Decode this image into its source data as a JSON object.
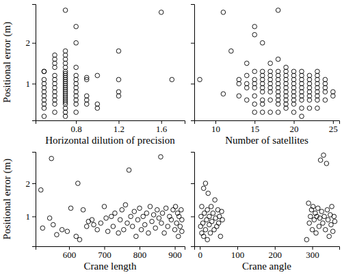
{
  "chart_data": [
    {
      "type": "scatter",
      "x_label": "Horizontal dilution of precision",
      "y_label": "Positional error (m)",
      "marker": "circle",
      "color": "#000000",
      "xlim": [
        0.42,
        1.82
      ],
      "xticks": [
        0.8,
        1.2,
        1.6
      ],
      "ylim": [
        0.1,
        2.95
      ],
      "yticks": [
        1,
        2
      ],
      "x": [
        0.5,
        0.5,
        0.5,
        0.5,
        0.5,
        0.5,
        0.5,
        0.5,
        0.5,
        0.5,
        0.5,
        0.6,
        0.6,
        0.6,
        0.6,
        0.6,
        0.6,
        0.6,
        0.6,
        0.6,
        0.6,
        0.6,
        0.6,
        0.6,
        0.7,
        0.7,
        0.7,
        0.7,
        0.7,
        0.7,
        0.7,
        0.7,
        0.7,
        0.7,
        0.7,
        0.7,
        0.7,
        0.7,
        0.7,
        0.7,
        0.7,
        0.7,
        0.7,
        0.7,
        0.7,
        0.7,
        0.7,
        0.7,
        0.7,
        0.7,
        0.8,
        0.8,
        0.8,
        0.8,
        0.8,
        0.8,
        0.8,
        0.8,
        0.8,
        0.8,
        0.8,
        0.8,
        0.9,
        0.9,
        0.9,
        0.9,
        0.9,
        1.0,
        1.0,
        1.0,
        1.2,
        1.2,
        1.2,
        1.2,
        1.6,
        1.7
      ],
      "values": [
        0.2,
        0.4,
        0.5,
        0.6,
        0.7,
        0.8,
        0.9,
        1.0,
        1.1,
        1.3,
        1.3,
        0.3,
        0.5,
        0.6,
        0.7,
        0.8,
        0.9,
        1.0,
        1.1,
        1.2,
        1.4,
        1.5,
        1.6,
        1.7,
        0.2,
        0.3,
        0.4,
        0.5,
        0.55,
        0.6,
        0.65,
        0.7,
        0.75,
        0.8,
        0.85,
        0.9,
        0.95,
        1.0,
        1.05,
        1.1,
        1.15,
        1.2,
        1.25,
        1.3,
        1.4,
        1.5,
        1.6,
        1.7,
        1.8,
        2.8,
        0.3,
        0.5,
        0.6,
        0.7,
        0.8,
        0.9,
        1.0,
        1.1,
        1.2,
        1.4,
        2.0,
        2.4,
        0.5,
        0.6,
        0.7,
        1.1,
        1.15,
        0.4,
        0.5,
        1.2,
        0.7,
        0.8,
        1.1,
        1.8,
        2.75,
        1.1
      ]
    },
    {
      "type": "scatter",
      "x_label": "Number of satellites",
      "tick_labels": "x",
      "marker": "circle",
      "color": "#000000",
      "xlim": [
        7.3,
        25.8
      ],
      "xticks": [
        10,
        15,
        20,
        25
      ],
      "ylim": [
        0.1,
        2.95
      ],
      "yticks": [
        1,
        2
      ],
      "x": [
        8,
        11,
        11,
        12,
        13,
        13,
        13,
        14,
        14,
        14,
        14,
        14,
        15,
        15,
        15,
        15,
        15,
        15,
        15,
        15,
        15,
        16,
        16,
        16,
        16,
        16,
        16,
        16,
        16,
        16,
        16,
        17,
        17,
        17,
        17,
        17,
        17,
        17,
        17,
        17,
        18,
        18,
        18,
        18,
        18,
        18,
        18,
        18,
        18,
        18,
        18,
        18,
        19,
        19,
        19,
        19,
        19,
        19,
        19,
        19,
        19,
        19,
        19,
        20,
        20,
        20,
        20,
        20,
        20,
        20,
        20,
        20,
        20,
        21,
        21,
        21,
        21,
        21,
        21,
        21,
        21,
        21,
        21,
        22,
        22,
        22,
        22,
        22,
        22,
        22,
        22,
        23,
        23,
        23,
        23,
        23,
        23,
        23,
        23,
        23,
        24,
        24,
        24,
        24,
        24,
        25,
        25
      ],
      "values": [
        1.1,
        2.75,
        0.75,
        1.8,
        0.7,
        1.0,
        1.1,
        0.6,
        0.9,
        1.0,
        1.2,
        1.5,
        0.3,
        0.5,
        0.7,
        0.9,
        1.0,
        1.1,
        1.3,
        2.2,
        2.4,
        0.3,
        0.5,
        0.6,
        0.8,
        0.9,
        1.0,
        1.1,
        1.2,
        1.3,
        2.0,
        0.3,
        0.6,
        0.8,
        0.9,
        1.0,
        1.1,
        1.2,
        1.3,
        1.5,
        0.3,
        0.5,
        0.6,
        0.7,
        0.8,
        0.9,
        1.0,
        1.1,
        1.2,
        1.3,
        1.6,
        2.8,
        0.4,
        0.5,
        0.6,
        0.7,
        0.8,
        0.9,
        1.0,
        1.1,
        1.2,
        1.3,
        1.4,
        0.3,
        0.5,
        0.6,
        0.7,
        0.8,
        0.9,
        1.0,
        1.1,
        1.2,
        1.3,
        0.2,
        0.4,
        0.6,
        0.7,
        0.8,
        0.9,
        1.0,
        1.1,
        1.2,
        1.3,
        0.4,
        0.6,
        0.7,
        0.8,
        0.9,
        1.0,
        1.1,
        1.2,
        0.4,
        0.6,
        0.7,
        0.8,
        0.9,
        1.0,
        1.1,
        1.2,
        1.3,
        0.6,
        0.8,
        0.9,
        1.0,
        1.1,
        0.7,
        0.8
      ]
    },
    {
      "type": "scatter",
      "x_label": "Crane length",
      "y_label": "Positional error (m)",
      "marker": "circle",
      "color": "#000000",
      "xlim": [
        505,
        928
      ],
      "xticks": [
        600,
        700,
        800,
        900
      ],
      "ylim": [
        0.1,
        2.95
      ],
      "yticks": [
        1,
        2
      ],
      "x": [
        520,
        525,
        545,
        550,
        555,
        565,
        580,
        595,
        605,
        620,
        625,
        630,
        640,
        650,
        655,
        665,
        670,
        680,
        690,
        700,
        705,
        710,
        720,
        725,
        730,
        740,
        745,
        750,
        755,
        760,
        765,
        770,
        775,
        780,
        785,
        790,
        795,
        800,
        805,
        810,
        815,
        820,
        825,
        830,
        835,
        840,
        845,
        850,
        855,
        860,
        862,
        865,
        870,
        875,
        880,
        885,
        890,
        895,
        900,
        902,
        905,
        908,
        910,
        912,
        915,
        918,
        920,
        920
      ],
      "values": [
        1.8,
        0.65,
        0.95,
        2.75,
        0.75,
        0.45,
        0.6,
        0.55,
        1.25,
        0.4,
        2.0,
        0.3,
        1.2,
        0.7,
        0.85,
        0.9,
        0.75,
        0.6,
        0.8,
        1.3,
        0.95,
        0.55,
        1.0,
        0.7,
        1.1,
        0.5,
        0.9,
        1.2,
        0.6,
        1.35,
        0.8,
        2.4,
        1.0,
        0.7,
        1.15,
        0.4,
        0.9,
        1.25,
        0.6,
        1.0,
        0.75,
        1.1,
        0.5,
        1.3,
        0.85,
        1.05,
        0.65,
        1.2,
        0.95,
        2.8,
        0.8,
        1.1,
        0.5,
        1.25,
        0.7,
        1.0,
        0.9,
        1.2,
        0.6,
        1.3,
        0.8,
        1.1,
        0.4,
        1.0,
        0.7,
        1.2,
        0.55,
        0.9
      ]
    },
    {
      "type": "scatter",
      "x_label": "Crane angle",
      "tick_labels": "x",
      "marker": "circle",
      "color": "#000000",
      "xlim": [
        -15,
        372
      ],
      "xticks": [
        0,
        100,
        200,
        300
      ],
      "ylim": [
        0.1,
        2.95
      ],
      "yticks": [
        1,
        2
      ],
      "x": [
        2,
        3,
        5,
        5,
        8,
        10,
        10,
        12,
        15,
        15,
        18,
        20,
        20,
        22,
        25,
        25,
        28,
        30,
        32,
        35,
        38,
        40,
        42,
        45,
        48,
        50,
        52,
        55,
        58,
        60,
        285,
        290,
        292,
        295,
        298,
        300,
        302,
        305,
        308,
        310,
        312,
        315,
        318,
        320,
        322,
        325,
        328,
        330,
        332,
        335,
        338,
        340,
        342,
        345,
        348,
        350,
        352,
        355,
        358,
        360
      ],
      "values": [
        0.7,
        1.0,
        0.5,
        1.3,
        0.8,
        1.85,
        0.4,
        1.1,
        0.6,
        2.0,
        0.9,
        1.2,
        0.3,
        1.7,
        0.75,
        1.0,
        0.5,
        1.3,
        0.85,
        1.1,
        0.6,
        1.5,
        0.95,
        0.7,
        1.2,
        0.8,
        1.0,
        0.4,
        1.15,
        0.9,
        0.3,
        1.4,
        0.8,
        1.0,
        1.2,
        0.6,
        1.3,
        0.9,
        1.1,
        0.5,
        1.0,
        1.25,
        0.7,
        0.95,
        2.7,
        1.15,
        0.8,
        2.85,
        1.0,
        0.6,
        2.6,
        1.2,
        0.9,
        0.4,
        1.05,
        0.75,
        1.3,
        0.55,
        1.0,
        0.85
      ]
    }
  ]
}
